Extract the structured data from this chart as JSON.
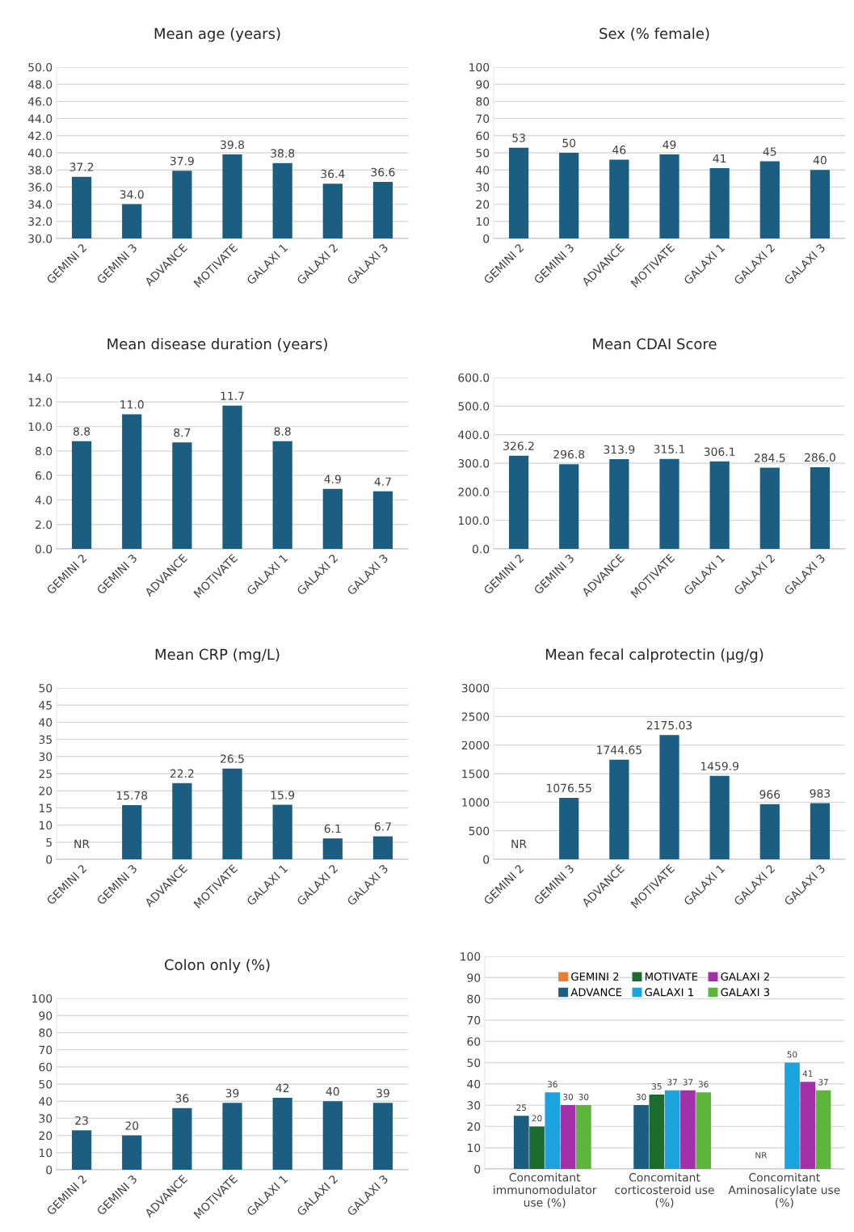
{
  "chart_data": [
    {
      "type": "bar",
      "title": "Mean age (years)",
      "categories": [
        "GEMINI 2",
        "GEMINI 3",
        "ADVANCE",
        "MOTIVATE",
        "GALAXI 1",
        "GALAXI 2",
        "GALAXI 3"
      ],
      "values": [
        37.2,
        34.0,
        37.9,
        39.8,
        38.8,
        36.4,
        36.6
      ],
      "value_labels": [
        "37.2",
        "34.0",
        "37.9",
        "39.8",
        "38.8",
        "36.4",
        "36.6"
      ],
      "color": "#1b5e82",
      "ylim": [
        30,
        50
      ],
      "yticks": [
        {
          "value": 30,
          "label": "30.0"
        },
        {
          "value": 32,
          "label": "32.0"
        },
        {
          "value": 34,
          "label": "34.0"
        },
        {
          "value": 36,
          "label": "36.0"
        },
        {
          "value": 38,
          "label": "38.0"
        },
        {
          "value": 40,
          "label": "40.0"
        },
        {
          "value": 42,
          "label": "42.0"
        },
        {
          "value": 44,
          "label": "44.0"
        },
        {
          "value": 46,
          "label": "46.0"
        },
        {
          "value": 48,
          "label": "48.0"
        },
        {
          "value": 50,
          "label": "50.0"
        }
      ],
      "grid": "y"
    },
    {
      "type": "bar",
      "title": "Sex (% female)",
      "categories": [
        "GEMINI 2",
        "GEMINI 3",
        "ADVANCE",
        "MOTIVATE",
        "GALAXI 1",
        "GALAXI 2",
        "GALAXI 3"
      ],
      "values": [
        53,
        50,
        46,
        49,
        41,
        45,
        40
      ],
      "value_labels": [
        "53",
        "50",
        "46",
        "49",
        "41",
        "45",
        "40"
      ],
      "color": "#1b5e82",
      "ylim": [
        0,
        100
      ],
      "yticks": [
        0,
        10,
        20,
        30,
        40,
        50,
        60,
        70,
        80,
        90,
        100
      ],
      "grid": "y"
    },
    {
      "type": "bar",
      "title": "Mean disease duration (years)",
      "categories": [
        "GEMINI 2",
        "GEMINI 3",
        "ADVANCE",
        "MOTIVATE",
        "GALAXI 1",
        "GALAXI 2",
        "GALAXI 3"
      ],
      "values": [
        8.8,
        11.0,
        8.7,
        11.7,
        8.8,
        4.9,
        4.7
      ],
      "value_labels": [
        "8.8",
        "11.0",
        "8.7",
        "11.7",
        "8.8",
        "4.9",
        "4.7"
      ],
      "color": "#1b5e82",
      "ylim": [
        0,
        14
      ],
      "yticks": [
        {
          "value": 0,
          "label": "0.0"
        },
        {
          "value": 2,
          "label": "2.0"
        },
        {
          "value": 4,
          "label": "4.0"
        },
        {
          "value": 6,
          "label": "6.0"
        },
        {
          "value": 8,
          "label": "8.0"
        },
        {
          "value": 10,
          "label": "10.0"
        },
        {
          "value": 12,
          "label": "12.0"
        },
        {
          "value": 14,
          "label": "14.0"
        }
      ],
      "grid": "y"
    },
    {
      "type": "bar",
      "title": "Mean CDAI Score",
      "categories": [
        "GEMINI 2",
        "GEMINI 3",
        "ADVANCE",
        "MOTIVATE",
        "GALAXI 1",
        "GALAXI 2",
        "GALAXI 3"
      ],
      "values": [
        326.2,
        296.8,
        313.9,
        315.1,
        306.1,
        284.5,
        286.0
      ],
      "value_labels": [
        "326.2",
        "296.8",
        "313.9",
        "315.1",
        "306.1",
        "284.5",
        "286.0"
      ],
      "color": "#1b5e82",
      "ylim": [
        0,
        600
      ],
      "yticks": [
        {
          "value": 0,
          "label": "0.0"
        },
        {
          "value": 100,
          "label": "100.0"
        },
        {
          "value": 200,
          "label": "200.0"
        },
        {
          "value": 300,
          "label": "300.0"
        },
        {
          "value": 400,
          "label": "400.0"
        },
        {
          "value": 500,
          "label": "500.0"
        },
        {
          "value": 600,
          "label": "600.0"
        }
      ],
      "grid": "y"
    },
    {
      "type": "bar",
      "title": "Mean CRP (mg/L)",
      "categories": [
        "GEMINI 2",
        "GEMINI 3",
        "ADVANCE",
        "MOTIVATE",
        "GALAXI 1",
        "GALAXI 2",
        "GALAXI 3"
      ],
      "values": [
        null,
        15.78,
        22.2,
        26.5,
        15.9,
        6.1,
        6.7
      ],
      "value_labels": [
        "NR",
        "15.78",
        "22.2",
        "26.5",
        "15.9",
        "6.1",
        "6.7"
      ],
      "color": "#1b5e82",
      "ylim": [
        0,
        50
      ],
      "yticks": [
        0,
        5,
        10,
        15,
        20,
        25,
        30,
        35,
        40,
        45,
        50
      ],
      "grid": "y"
    },
    {
      "type": "bar",
      "title": "Mean fecal calprotectin (μg/g)",
      "categories": [
        "GEMINI 2",
        "GEMINI 3",
        "ADVANCE",
        "MOTIVATE",
        "GALAXI 1",
        "GALAXI 2",
        "GALAXI 3"
      ],
      "values": [
        null,
        1076.55,
        1744.65,
        2175.03,
        1459.9,
        966,
        983
      ],
      "value_labels": [
        "NR",
        "1076.55",
        "1744.65",
        "2175.03",
        "1459.9",
        "966",
        "983"
      ],
      "color": "#1b5e82",
      "ylim": [
        0,
        3000
      ],
      "yticks": [
        0,
        500,
        1000,
        1500,
        2000,
        2500,
        3000
      ],
      "grid": "y"
    },
    {
      "type": "bar",
      "title": "Colon only (%)",
      "categories": [
        "GEMINI 2",
        "GEMINI 3",
        "ADVANCE",
        "MOTIVATE",
        "GALAXI 1",
        "GALAXI 2",
        "GALAXI 3"
      ],
      "values": [
        23,
        20,
        36,
        39,
        42,
        40,
        39
      ],
      "value_labels": [
        "23",
        "20",
        "36",
        "39",
        "42",
        "40",
        "39"
      ],
      "color": "#1b5e82",
      "ylim": [
        0,
        100
      ],
      "yticks": [
        0,
        10,
        20,
        30,
        40,
        50,
        60,
        70,
        80,
        90,
        100
      ],
      "grid": "y"
    },
    {
      "type": "bar",
      "categories": [
        "Concomitant\nimmunomodulator\nuse (%)",
        "Concomitant\ncorticosteroid use\n(%)",
        "Concomitant\nAminosalicylate use\n(%)"
      ],
      "series": [
        {
          "name": "GEMINI 2",
          "color": "#ed7d31",
          "values": [
            null,
            null,
            null
          ]
        },
        {
          "name": "ADVANCE",
          "color": "#1b5e82",
          "values": [
            25,
            30,
            null
          ],
          "value_labels": [
            "25",
            "30",
            "NR"
          ]
        },
        {
          "name": "MOTIVATE",
          "color": "#1e6b2e",
          "values": [
            20,
            35,
            null
          ],
          "value_labels": [
            "20",
            "35",
            null
          ]
        },
        {
          "name": "GALAXI 1",
          "color": "#1aa3dc",
          "values": [
            36,
            37,
            50
          ],
          "value_labels": [
            "36",
            "37",
            "50"
          ]
        },
        {
          "name": "GALAXI 2",
          "color": "#a330a8",
          "values": [
            30,
            37,
            41
          ],
          "value_labels": [
            "30",
            "37",
            "41"
          ]
        },
        {
          "name": "GALAXI 3",
          "color": "#5db53b",
          "values": [
            30,
            36,
            37
          ],
          "value_labels": [
            "30",
            "36",
            "37"
          ]
        }
      ],
      "ylim": [
        0,
        100
      ],
      "yticks": [
        0,
        10,
        20,
        30,
        40,
        50,
        60,
        70,
        80,
        90,
        100
      ],
      "grid": "y",
      "legend": "top"
    }
  ]
}
